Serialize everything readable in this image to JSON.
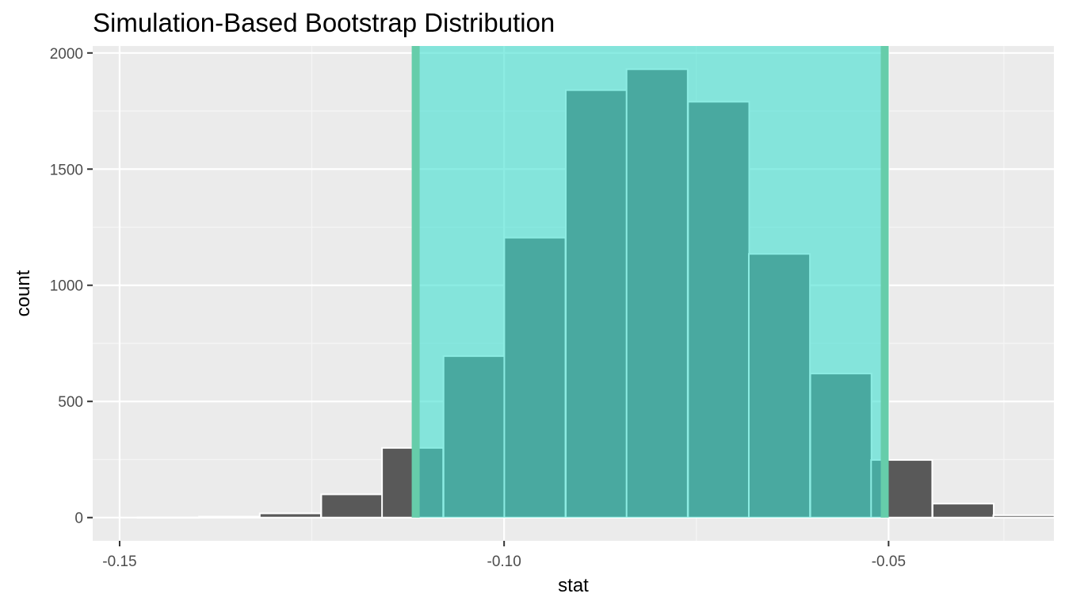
{
  "chart_data": {
    "type": "bar",
    "title": "Simulation-Based Bootstrap Distribution",
    "xlabel": "stat",
    "ylabel": "count",
    "xlim": [
      -0.1535,
      -0.0285
    ],
    "ylim": [
      -100,
      2030
    ],
    "x_ticks": [
      -0.15,
      -0.1,
      -0.05
    ],
    "x_tick_labels": [
      "-0.15",
      "-0.10",
      "-0.05"
    ],
    "x_minor_ticks": [
      -0.125,
      -0.075,
      -0.035
    ],
    "y_ticks": [
      0,
      500,
      1000,
      1500,
      2000
    ],
    "y_tick_labels": [
      "0",
      "500",
      "1000",
      "1500",
      "2000"
    ],
    "y_minor_ticks": [
      250,
      750,
      1250,
      1750
    ],
    "grid": true,
    "bin_width": 0.00795,
    "bins": [
      {
        "x": -0.1437,
        "count": 1
      },
      {
        "x": -0.1357,
        "count": 4
      },
      {
        "x": -0.1278,
        "count": 18
      },
      {
        "x": -0.1198,
        "count": 100
      },
      {
        "x": -0.1119,
        "count": 300
      },
      {
        "x": -0.1039,
        "count": 695
      },
      {
        "x": -0.096,
        "count": 1205
      },
      {
        "x": -0.088,
        "count": 1840
      },
      {
        "x": -0.0801,
        "count": 1930
      },
      {
        "x": -0.0721,
        "count": 1790
      },
      {
        "x": -0.0642,
        "count": 1135
      },
      {
        "x": -0.0562,
        "count": 620
      },
      {
        "x": -0.0483,
        "count": 248
      },
      {
        "x": -0.0403,
        "count": 60
      },
      {
        "x": -0.0324,
        "count": 10
      }
    ],
    "confidence_interval": {
      "lower": -0.1115,
      "upper": -0.0505
    },
    "colors": {
      "bar_fill": "#595959",
      "bar_stroke": "#ffffff",
      "shade_fill": "#40e0d0",
      "shade_opacity": 0.6,
      "ci_line": "#66cdaa",
      "panel_bg": "#ebebeb",
      "grid_major": "#ffffff",
      "grid_minor": "#f5f5f5"
    }
  }
}
